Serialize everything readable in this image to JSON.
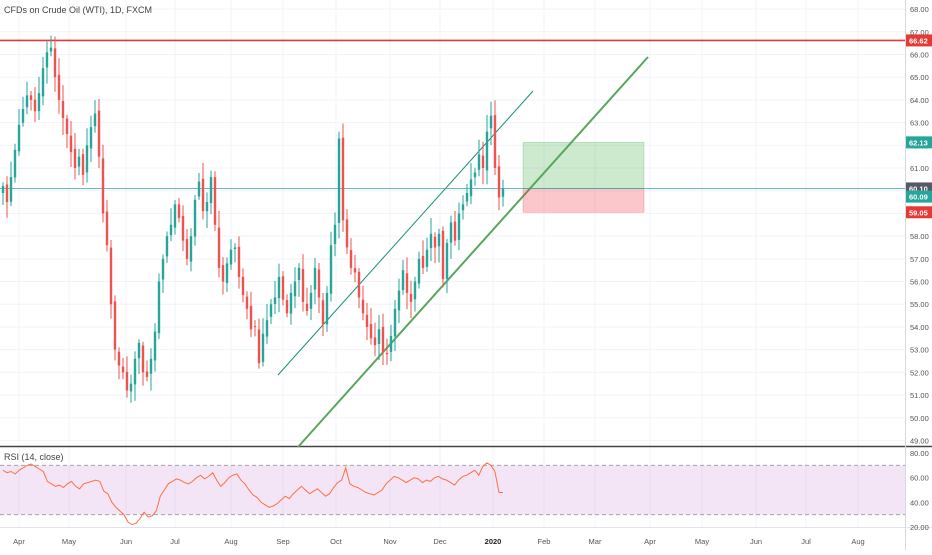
{
  "header": {
    "title": "CFDs on Crude Oil (WTI), 1D, FXCM"
  },
  "rsi": {
    "title": "RSI (14, close)",
    "upper": 70,
    "lower": 30,
    "axis_ticks": [
      "80.00",
      "60.00",
      "40.00",
      "20.00"
    ],
    "values": [
      66,
      64,
      65,
      63,
      66,
      68,
      70,
      71,
      69,
      67,
      65,
      57,
      55,
      53,
      54,
      52,
      55,
      57,
      53,
      51,
      55,
      56,
      57,
      58,
      57,
      49,
      47,
      40,
      36,
      33,
      30,
      24,
      22,
      23,
      27,
      32,
      28,
      29,
      33,
      45,
      50,
      55,
      57,
      59,
      58,
      56,
      55,
      57,
      60,
      62,
      59,
      61,
      64,
      58,
      53,
      56,
      60,
      62,
      63,
      58,
      55,
      50,
      46,
      44,
      40,
      38,
      36,
      37,
      39,
      42,
      45,
      43,
      47,
      50,
      53,
      50,
      47,
      49,
      51,
      48,
      45,
      47,
      52,
      56,
      58,
      68,
      55,
      53,
      52,
      50,
      48,
      47,
      46,
      48,
      50,
      55,
      58,
      61,
      60,
      58,
      56,
      58,
      60,
      59,
      56,
      58,
      57,
      60,
      61,
      59,
      58,
      56,
      54,
      58,
      61,
      62,
      64,
      66,
      62,
      69,
      72,
      70,
      65,
      48,
      48
    ]
  },
  "chart_data": {
    "type": "candlestick",
    "title": "CFDs on Crude Oil (WTI), 1D, FXCM",
    "ylim": [
      48.8,
      68.4
    ],
    "y_ticks": [
      "68.00",
      "67.00",
      "66.00",
      "65.00",
      "64.00",
      "63.00",
      "62.00",
      "61.00",
      "60.00",
      "59.00",
      "58.00",
      "57.00",
      "56.00",
      "55.00",
      "54.00",
      "53.00",
      "52.00",
      "51.00",
      "50.00",
      "49.00"
    ],
    "x_labels": [
      "Apr",
      "May",
      "Jun",
      "Jul",
      "Aug",
      "Sep",
      "Oct",
      "Nov",
      "Dec",
      "2020",
      "Feb",
      "Mar",
      "Apr",
      "May",
      "Jun",
      "Jul",
      "Aug"
    ],
    "price_labels": {
      "resistance": "66.62",
      "target": "62.13",
      "current": "60.10",
      "entry": "60.09",
      "stop": "59.05"
    },
    "levels": {
      "resistance": 66.62,
      "target": 62.13,
      "current": 60.1,
      "entry": 60.09,
      "stop": 59.05
    },
    "closes": [
      60.2,
      59.5,
      60.6,
      61.8,
      62.9,
      63.6,
      64.2,
      64.0,
      63.5,
      64.3,
      65.4,
      66.1,
      66.3,
      65.0,
      64.0,
      63.2,
      62.5,
      61.7,
      61.0,
      61.5,
      60.7,
      62.0,
      62.8,
      63.4,
      61.5,
      59.0,
      57.6,
      55.0,
      53.0,
      52.3,
      52.0,
      51.2,
      51.5,
      52.6,
      53.3,
      52.0,
      51.8,
      52.6,
      53.8,
      56.0,
      57.0,
      58.0,
      58.5,
      59.4,
      58.8,
      57.8,
      57.0,
      58.0,
      59.6,
      60.4,
      59.1,
      59.5,
      60.6,
      58.5,
      56.6,
      56.0,
      56.8,
      57.4,
      57.5,
      56.2,
      55.4,
      54.8,
      53.9,
      54.0,
      52.4,
      53.7,
      54.3,
      55.0,
      55.3,
      56.2,
      55.2,
      54.6,
      55.5,
      56.0,
      56.6,
      55.1,
      54.7,
      55.5,
      56.6,
      55.3,
      54.1,
      55.5,
      57.6,
      58.5,
      62.3,
      58.7,
      57.5,
      56.6,
      56.4,
      55.3,
      54.6,
      54.0,
      53.5,
      53.2,
      53.9,
      52.9,
      52.8,
      53.6,
      54.8,
      55.6,
      56.5,
      55.5,
      55.1,
      56.0,
      57.0,
      56.6,
      57.4,
      58.1,
      57.5,
      58.1,
      56.1,
      57.7,
      58.6,
      57.8,
      59.0,
      59.4,
      59.9,
      60.5,
      60.8,
      61.6,
      61.0,
      62.6,
      63.3,
      61.0,
      59.7,
      60.1
    ]
  }
}
